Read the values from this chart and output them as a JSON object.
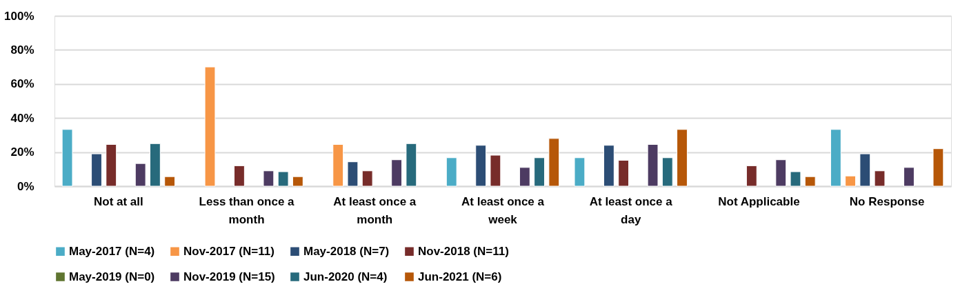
{
  "chart_data": {
    "type": "bar",
    "categories": [
      "Not at all",
      "Less than once a month",
      "At least once a month",
      "At least once a week",
      "At least once a day",
      "Not Applicable",
      "No Response"
    ],
    "series": [
      {
        "name": "May-2017 (N=4)",
        "color": "#4bacc6",
        "values": [
          33.3,
          null,
          null,
          16.7,
          16.7,
          null,
          33.3
        ]
      },
      {
        "name": "Nov-2017 (N=11)",
        "color": "#f79646",
        "values": [
          null,
          70,
          24.5,
          null,
          null,
          null,
          6
        ]
      },
      {
        "name": "May-2018 (N=7)",
        "color": "#2c4d75",
        "values": [
          19,
          null,
          14.3,
          24,
          24,
          null,
          19
        ]
      },
      {
        "name": "Nov-2018 (N=11)",
        "color": "#772c2a",
        "values": [
          24.5,
          12,
          9,
          18.2,
          15.2,
          12,
          9
        ]
      },
      {
        "name": "May-2019 (N=0)",
        "color": "#5f7530",
        "values": [
          null,
          null,
          null,
          null,
          null,
          null,
          null
        ]
      },
      {
        "name": "Nov-2019 (N=15)",
        "color": "#4d3b62",
        "values": [
          13.3,
          9,
          15.5,
          11,
          24.5,
          15.5,
          11
        ]
      },
      {
        "name": "Jun-2020 (N=4)",
        "color": "#276a7c",
        "values": [
          25,
          8.5,
          25,
          16.7,
          16.7,
          8.5,
          null
        ]
      },
      {
        "name": "Jun-2021 (N=6)",
        "color": "#b65708",
        "values": [
          5.6,
          5.6,
          null,
          28,
          33.3,
          5.6,
          22
        ]
      }
    ],
    "ylim": [
      0,
      100
    ],
    "yticks": [
      {
        "value": 0,
        "label": "0%"
      },
      {
        "value": 20,
        "label": "20%"
      },
      {
        "value": 40,
        "label": "40%"
      },
      {
        "value": 60,
        "label": "60%"
      },
      {
        "value": 80,
        "label": "80%"
      },
      {
        "value": 100,
        "label": "100%"
      }
    ],
    "grid": "y",
    "legend": "bottom"
  }
}
